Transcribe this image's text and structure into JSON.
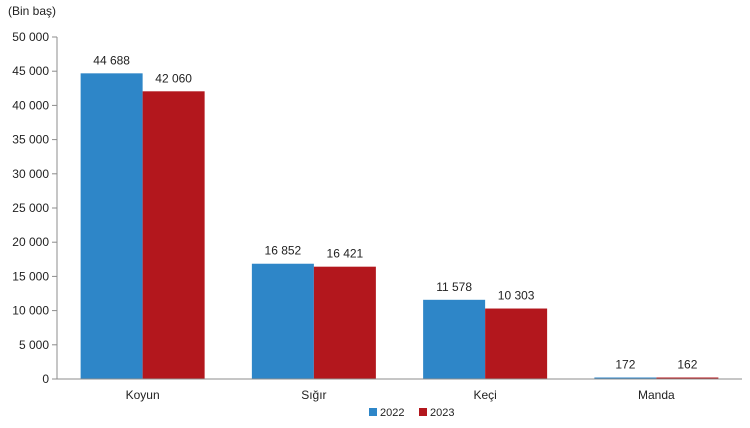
{
  "chart_data": {
    "type": "bar",
    "unit_label": "(Bin baş)",
    "categories": [
      "Koyun",
      "Sığır",
      "Keçi",
      "Manda"
    ],
    "series": [
      {
        "name": "2022",
        "values": [
          44688,
          16852,
          11578,
          172
        ],
        "labels": [
          "44 688",
          "16 852",
          "11 578",
          "172"
        ],
        "color": "#2e86c8"
      },
      {
        "name": "2023",
        "values": [
          42060,
          16421,
          10303,
          162
        ],
        "labels": [
          "42 060",
          "16 421",
          "10 303",
          "162"
        ],
        "color": "#b3171d"
      }
    ],
    "ylim": [
      0,
      50000
    ],
    "yticks": [
      0,
      5000,
      10000,
      15000,
      20000,
      25000,
      30000,
      35000,
      40000,
      45000,
      50000
    ],
    "ytick_labels": [
      "0",
      "5 000",
      "10 000",
      "15 000",
      "20 000",
      "25 000",
      "30 000",
      "35 000",
      "40 000",
      "45 000",
      "50 000"
    ],
    "grid": false,
    "legend_position": "bottom-center"
  }
}
